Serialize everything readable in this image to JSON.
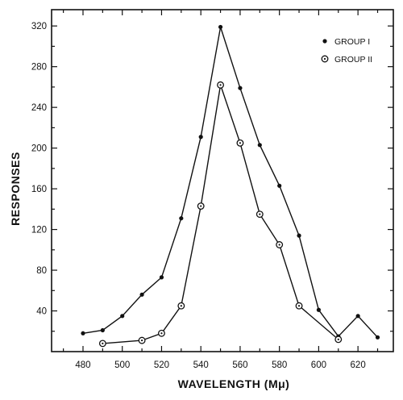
{
  "chart_data": {
    "type": "line",
    "xlabel": "WAVELENGTH (Mμ)",
    "ylabel": "RESPONSES",
    "xlim": [
      464,
      638
    ],
    "ylim": [
      0,
      336
    ],
    "x_ticks": [
      480,
      500,
      520,
      540,
      560,
      580,
      600,
      620
    ],
    "y_ticks": [
      40,
      80,
      120,
      160,
      200,
      240,
      280,
      320
    ],
    "x_minor_step": 10,
    "y_minor_step": 20,
    "legend_position": "top-right",
    "series": [
      {
        "name": "GROUP I",
        "marker": "filled-dot",
        "color": "#111111",
        "x": [
          480,
          490,
          500,
          510,
          520,
          530,
          540,
          550,
          560,
          570,
          580,
          590,
          600,
          610,
          620,
          630
        ],
        "y": [
          18,
          21,
          35,
          56,
          73,
          131,
          211,
          319,
          259,
          203,
          163,
          114,
          41,
          15,
          35,
          14
        ]
      },
      {
        "name": "GROUP II",
        "marker": "circle-dot",
        "color": "#111111",
        "x": [
          490,
          510,
          520,
          530,
          540,
          550,
          560,
          570,
          580,
          590,
          610
        ],
        "y": [
          8,
          11,
          18,
          45,
          143,
          262,
          205,
          135,
          105,
          45,
          12
        ]
      }
    ]
  }
}
